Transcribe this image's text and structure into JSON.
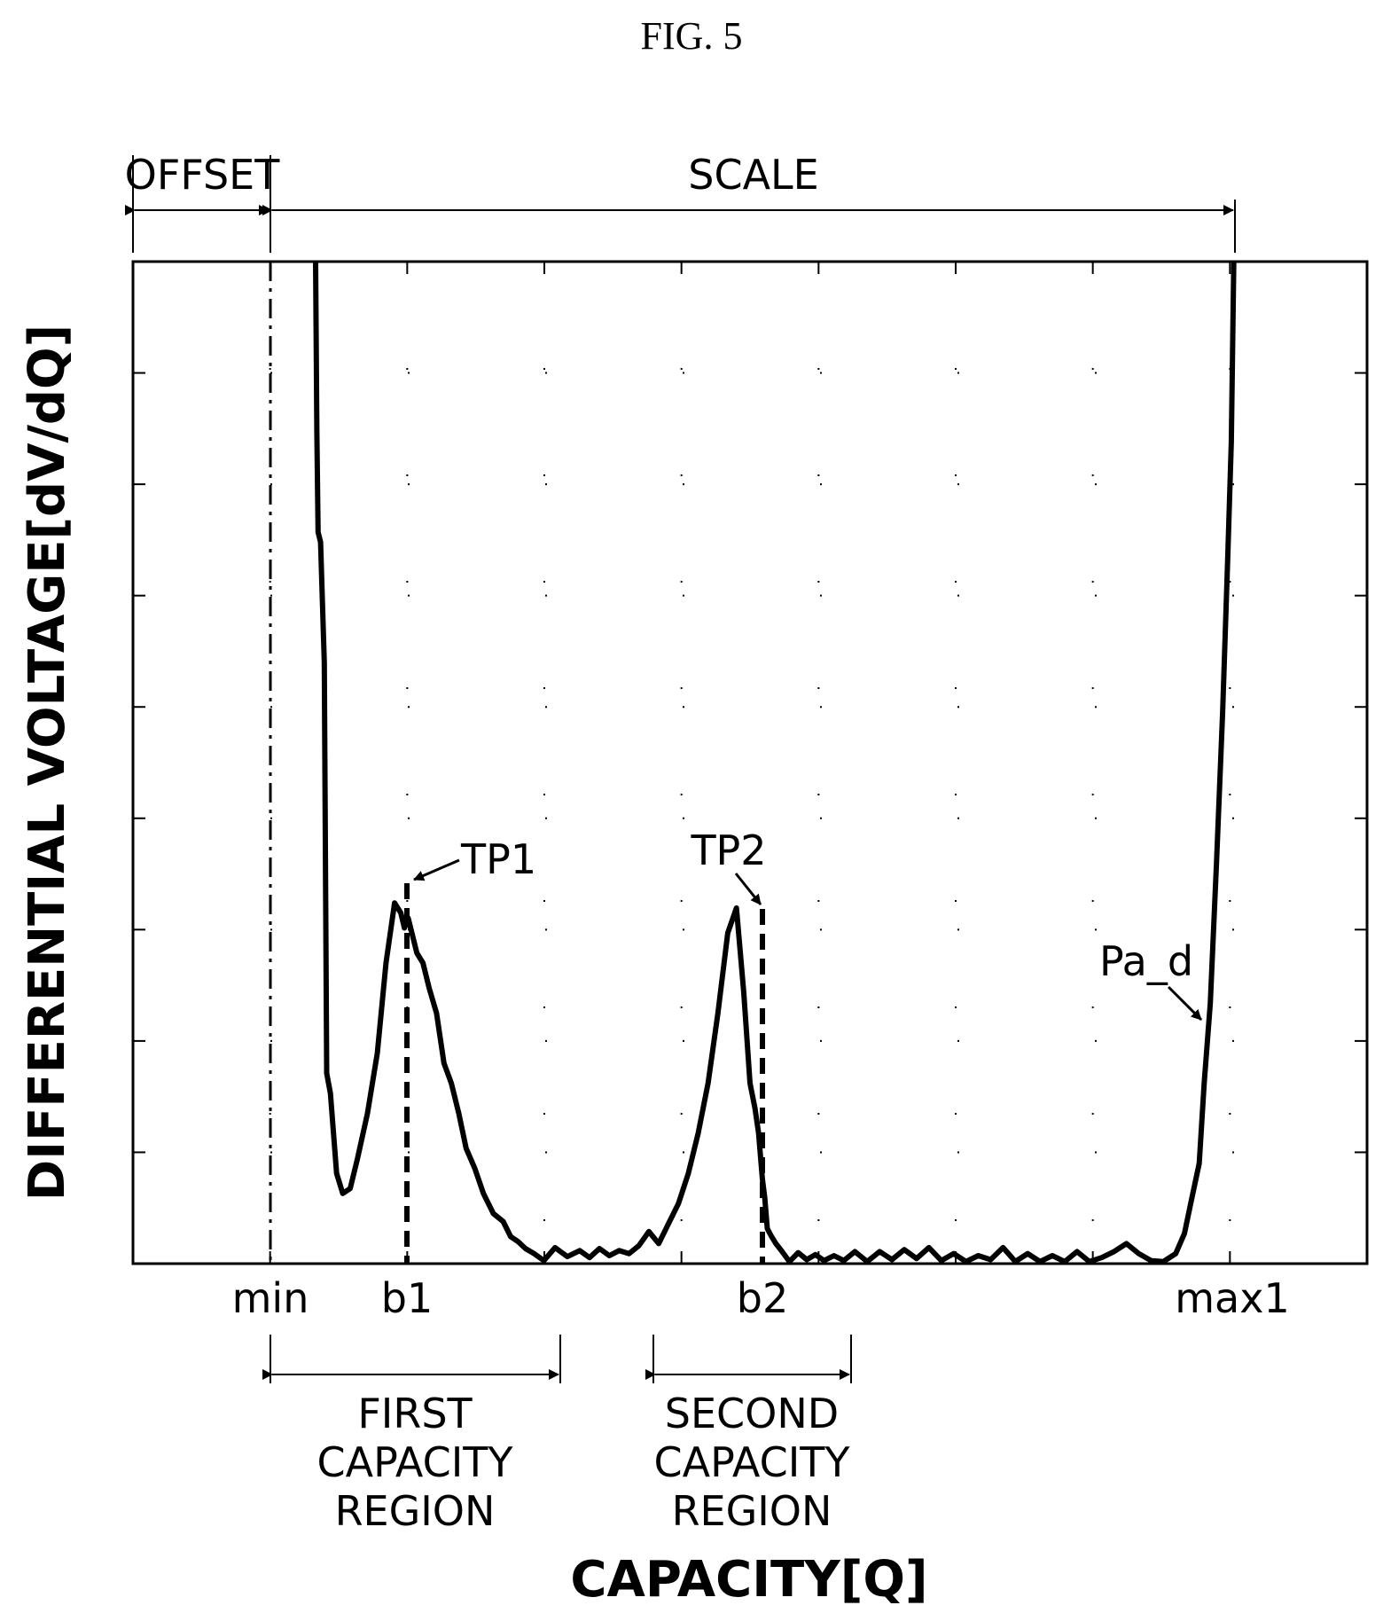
{
  "figure": {
    "title": "FIG. 5"
  },
  "chart_data": {
    "type": "line",
    "title": "",
    "xlabel": "CAPACITY[Q]",
    "ylabel": "DIFFERENTIAL VOLTAGE[dV/dQ]",
    "xlim": [
      0,
      100
    ],
    "ylim": [
      0,
      100
    ],
    "grid": "dotted",
    "x_tick_labels": [
      {
        "x": 11.1,
        "label": "min"
      },
      {
        "x": 22.2,
        "label": "b1"
      },
      {
        "x": 51.1,
        "label": "b2"
      },
      {
        "x": 89.2,
        "label": "max1"
      }
    ],
    "series": [
      {
        "name": "",
        "x": [
          14.8,
          14.9,
          15.0,
          15.2,
          15.5,
          15.7,
          16.0,
          16.5,
          17.0,
          17.6,
          18.2,
          19.0,
          19.8,
          20.5,
          21.2,
          21.7,
          22.0,
          22.3,
          22.6,
          23.0,
          23.5,
          24.0,
          24.6,
          25.2,
          25.8,
          26.4,
          27.0,
          27.7,
          28.4,
          29.2,
          30.0,
          30.6,
          31.2,
          31.8,
          32.5,
          33.3,
          34.2,
          35.2,
          36.2,
          37.0,
          37.8,
          38.6,
          39.4,
          40.2,
          41.0,
          41.8,
          42.6,
          43.4,
          44.2,
          45.0,
          45.8,
          46.6,
          47.4,
          48.2,
          48.9,
          49.5,
          50.0,
          50.4,
          50.7,
          51.0,
          51.2,
          51.4,
          51.7,
          52.1,
          52.6,
          53.2,
          53.9,
          54.6,
          55.3,
          56.0,
          56.8,
          57.6,
          58.5,
          59.5,
          60.5,
          61.5,
          62.5,
          63.5,
          64.5,
          65.5,
          66.5,
          67.5,
          68.5,
          69.5,
          70.5,
          71.5,
          72.5,
          73.5,
          74.5,
          75.5,
          76.5,
          77.5,
          78.5,
          79.5,
          80.5,
          81.5,
          82.5,
          83.5,
          84.5,
          85.2,
          85.8,
          86.4,
          86.8,
          87.3,
          87.8,
          88.3,
          88.7,
          89.0,
          89.2
        ],
        "values": [
          100,
          83,
          73,
          72,
          60,
          19,
          17,
          9,
          7,
          7.5,
          10.5,
          15,
          21,
          30,
          36,
          35,
          33.5,
          34.5,
          33,
          31,
          30,
          27.5,
          25,
          20,
          18,
          15,
          11.5,
          9.5,
          7,
          5,
          4.2,
          2.7,
          2.2,
          1.5,
          1,
          0.3,
          1.6,
          0.7,
          1.3,
          0.6,
          1.5,
          0.8,
          1.3,
          1.0,
          1.8,
          3.2,
          2.0,
          4.0,
          6.0,
          9.0,
          13.0,
          18.0,
          25.0,
          33.0,
          35.5,
          27.0,
          18.0,
          15.5,
          13.0,
          8.5,
          6.5,
          3.5,
          2.8,
          2.0,
          1.2,
          0.2,
          1.1,
          0.4,
          0.9,
          0.3,
          0.8,
          0.3,
          1.2,
          0.2,
          1.2,
          0.4,
          1.4,
          0.5,
          1.6,
          0.3,
          1.0,
          0.2,
          0.8,
          0.4,
          1.6,
          0.2,
          1.0,
          0.2,
          0.8,
          0.2,
          1.2,
          0.2,
          0.6,
          1.2,
          2.0,
          1.0,
          0.3,
          0.2,
          1.0,
          3.0,
          6.5,
          10.0,
          18.0,
          26.0,
          40.0,
          55.0,
          70.0,
          82.0,
          100
        ]
      }
    ],
    "annotations": [
      {
        "label": "TP1",
        "x": 22.2,
        "y": 38
      },
      {
        "label": "TP2",
        "x": 51.1,
        "y": 35.5
      },
      {
        "label": "Pa_d",
        "x": 86.8,
        "y": 25
      }
    ],
    "dimension_labels": {
      "offset": "OFFSET",
      "scale": "SCALE",
      "first_region": [
        "FIRST",
        "CAPACITY",
        "REGION"
      ],
      "second_region": [
        "SECOND",
        "CAPACITY",
        "REGION"
      ]
    }
  }
}
